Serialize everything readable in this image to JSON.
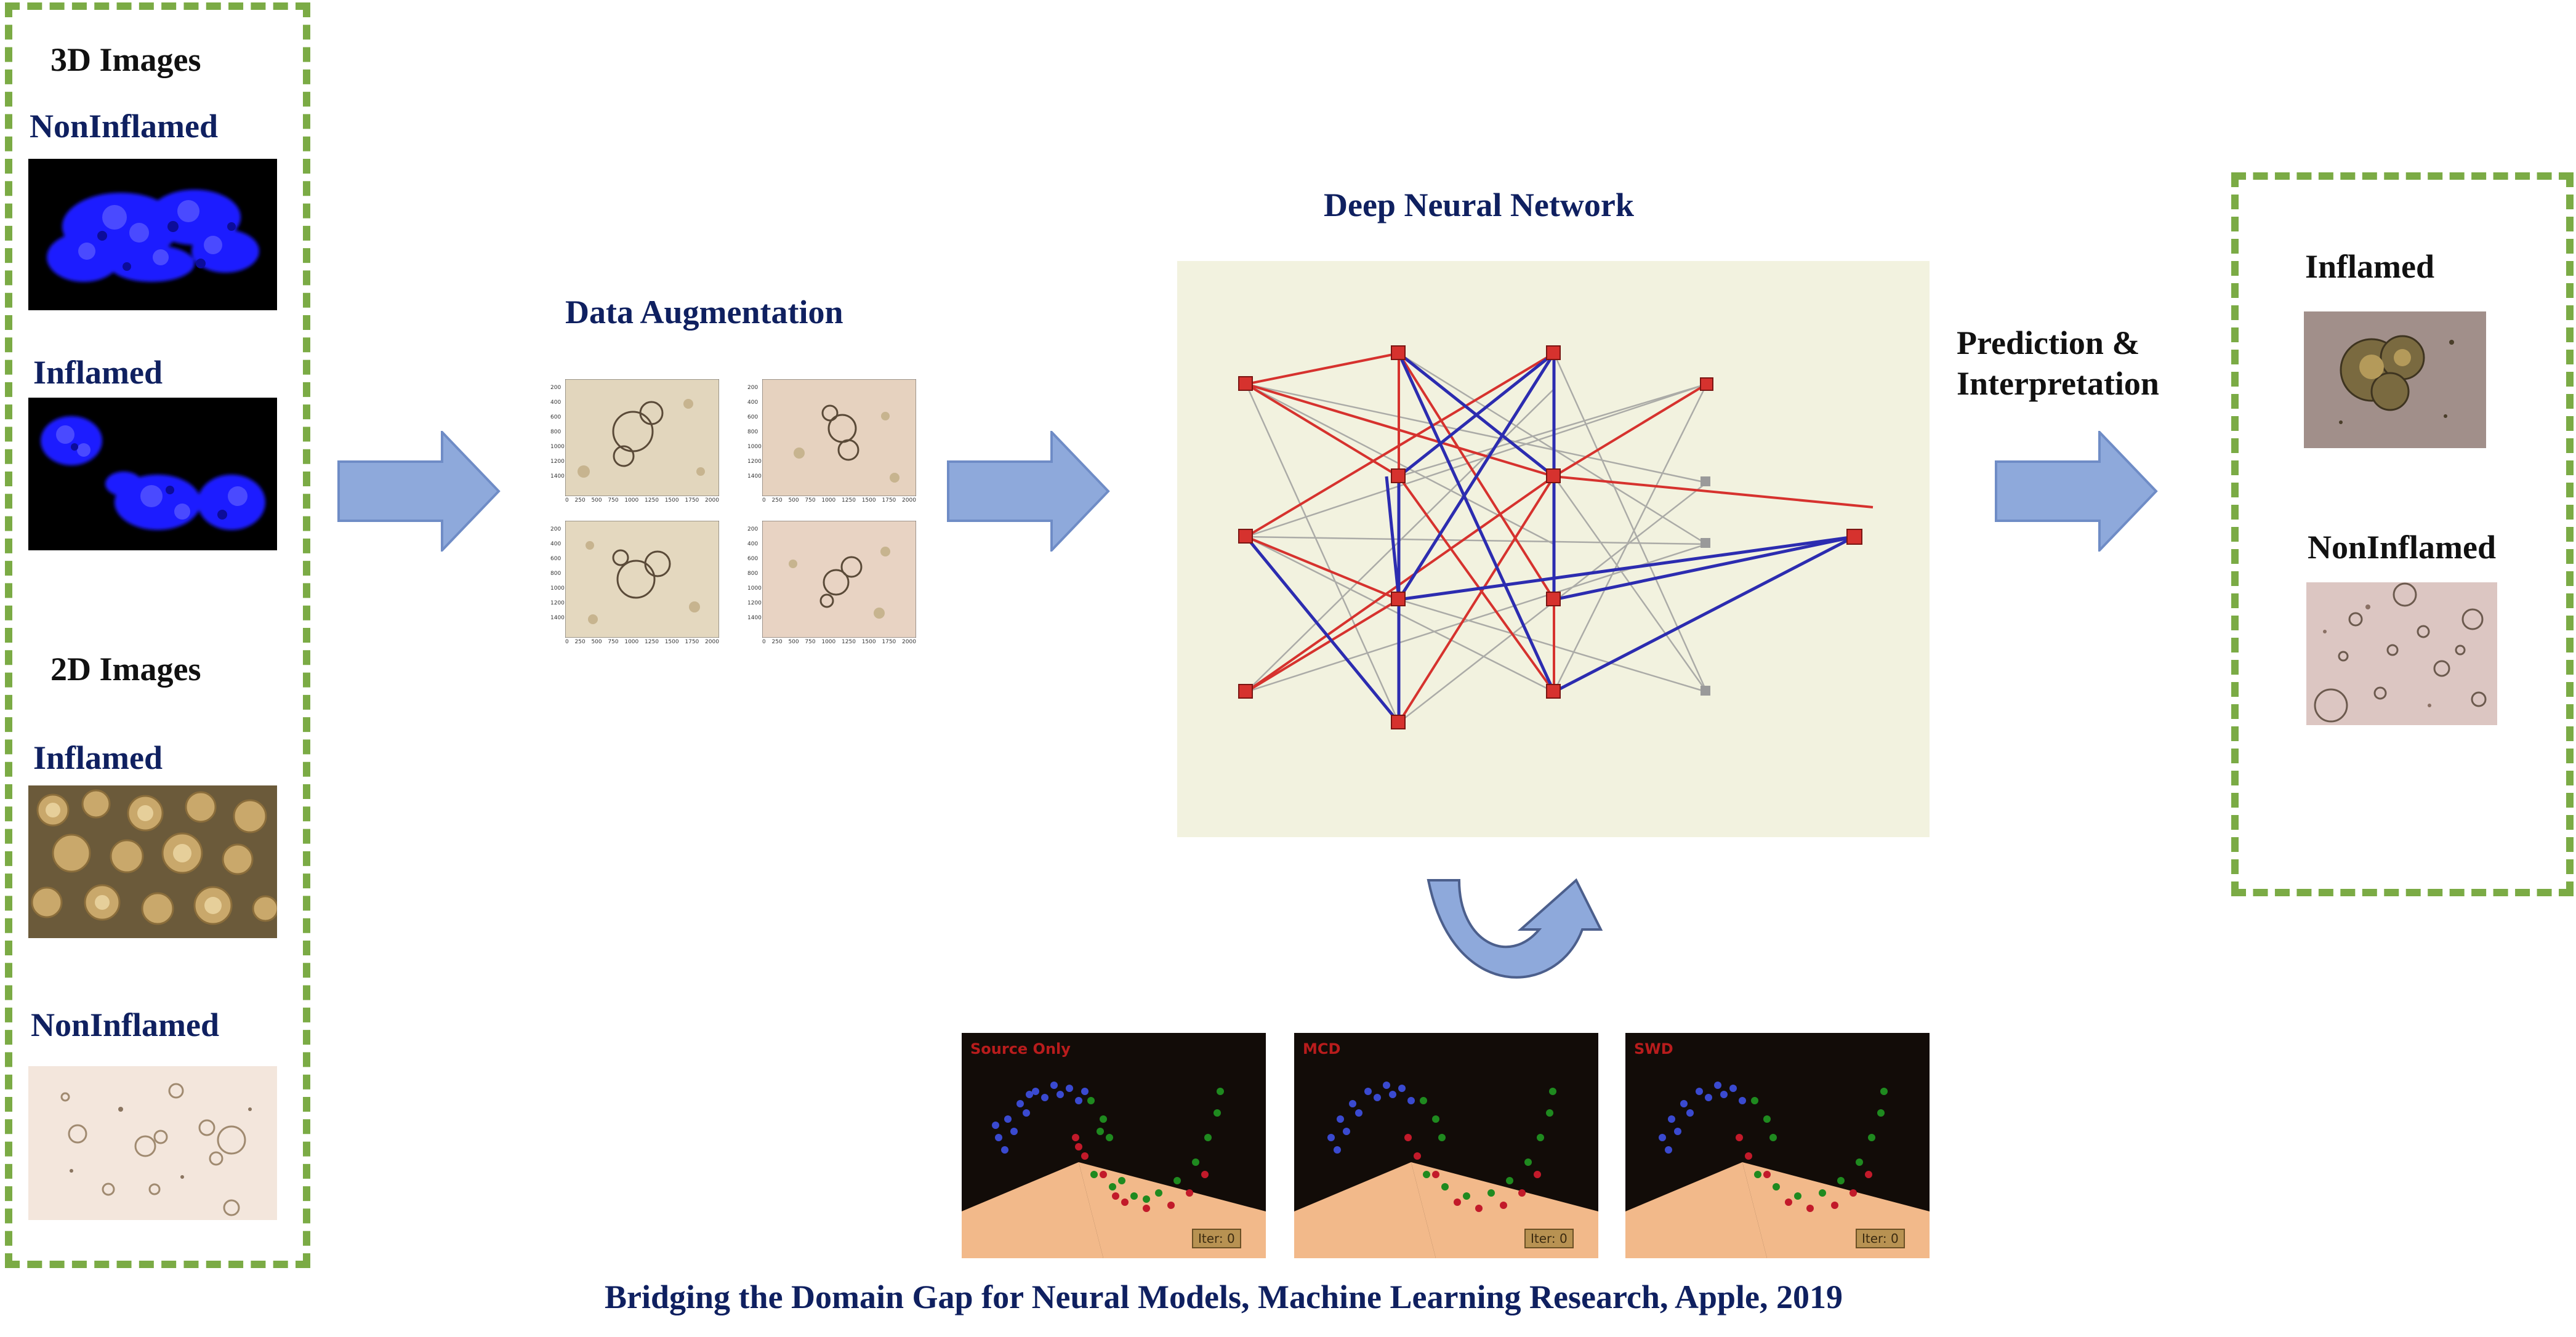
{
  "left_panel": {
    "heading_3d": "3D Images",
    "label_3d_noninflamed": "NonInflamed",
    "label_3d_inflamed": "Inflamed",
    "heading_2d": "2D Images",
    "label_2d_inflamed": "Inflamed",
    "label_2d_noninflamed": "NonInflamed"
  },
  "augmentation": {
    "title": "Data Augmentation",
    "tile_y_ticks": [
      "200",
      "400",
      "600",
      "800",
      "1000",
      "1200",
      "1400"
    ],
    "tile_x_ticks": [
      "0",
      "250",
      "500",
      "750",
      "1000",
      "1250",
      "1500",
      "1750",
      "2000"
    ]
  },
  "network": {
    "title": "Deep Neural Network"
  },
  "prediction": {
    "title_line1": "Prediction &",
    "title_line2": "Interpretation"
  },
  "right_panel": {
    "label_inflamed": "Inflamed",
    "label_noninflamed": "NonInflamed"
  },
  "domain_panels": [
    {
      "title": "Source Only",
      "iter": "Iter: 0"
    },
    {
      "title": "MCD",
      "iter": "Iter: 0"
    },
    {
      "title": "SWD",
      "iter": "Iter: 0"
    }
  ],
  "citation": "Bridging the Domain Gap for Neural Models, Machine Learning Research, Apple, 2019",
  "colors": {
    "dash_green": "#7bab45",
    "arrow_fill": "#8ea9db",
    "arrow_stroke": "#6f8cc6",
    "navy_text": "#0f2060",
    "fluor_blue": "#1c1cff",
    "net_red": "#d6322e",
    "net_blue": "#2c2cb0"
  }
}
